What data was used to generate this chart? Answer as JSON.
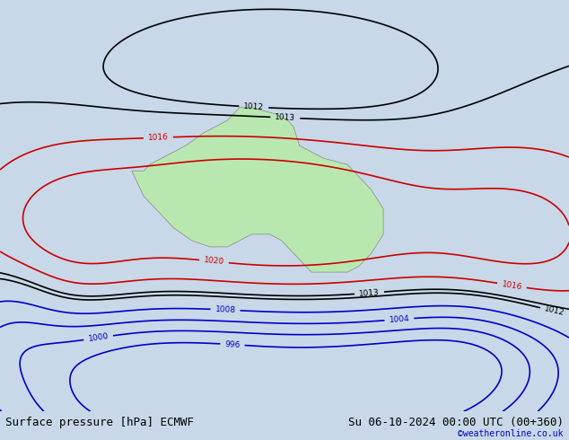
{
  "title_left": "Surface pressure [hPa] ECMWF",
  "title_right": "Su 06-10-2024 00:00 UTC (00+360)",
  "credit": "©weatheronline.co.uk",
  "bg_color": "#c8d8e8",
  "ocean_color": "#c8d8e8",
  "land_color": "#b8e8b0",
  "coast_color": "#888888",
  "font_color_black": "#000000",
  "font_color_blue": "#0000cc",
  "font_color_red": "#cc0000",
  "bottom_bar_color": "#ffffff",
  "title_fontsize": 9,
  "label_fontsize": 7,
  "map_lon_min": 90,
  "map_lon_max": 185,
  "map_lat_min": -60,
  "map_lat_max": 5,
  "levels_red": [
    1016,
    1020
  ],
  "levels_black": [
    1012,
    1013
  ],
  "levels_blue": [
    996,
    1000,
    1004,
    1008
  ]
}
